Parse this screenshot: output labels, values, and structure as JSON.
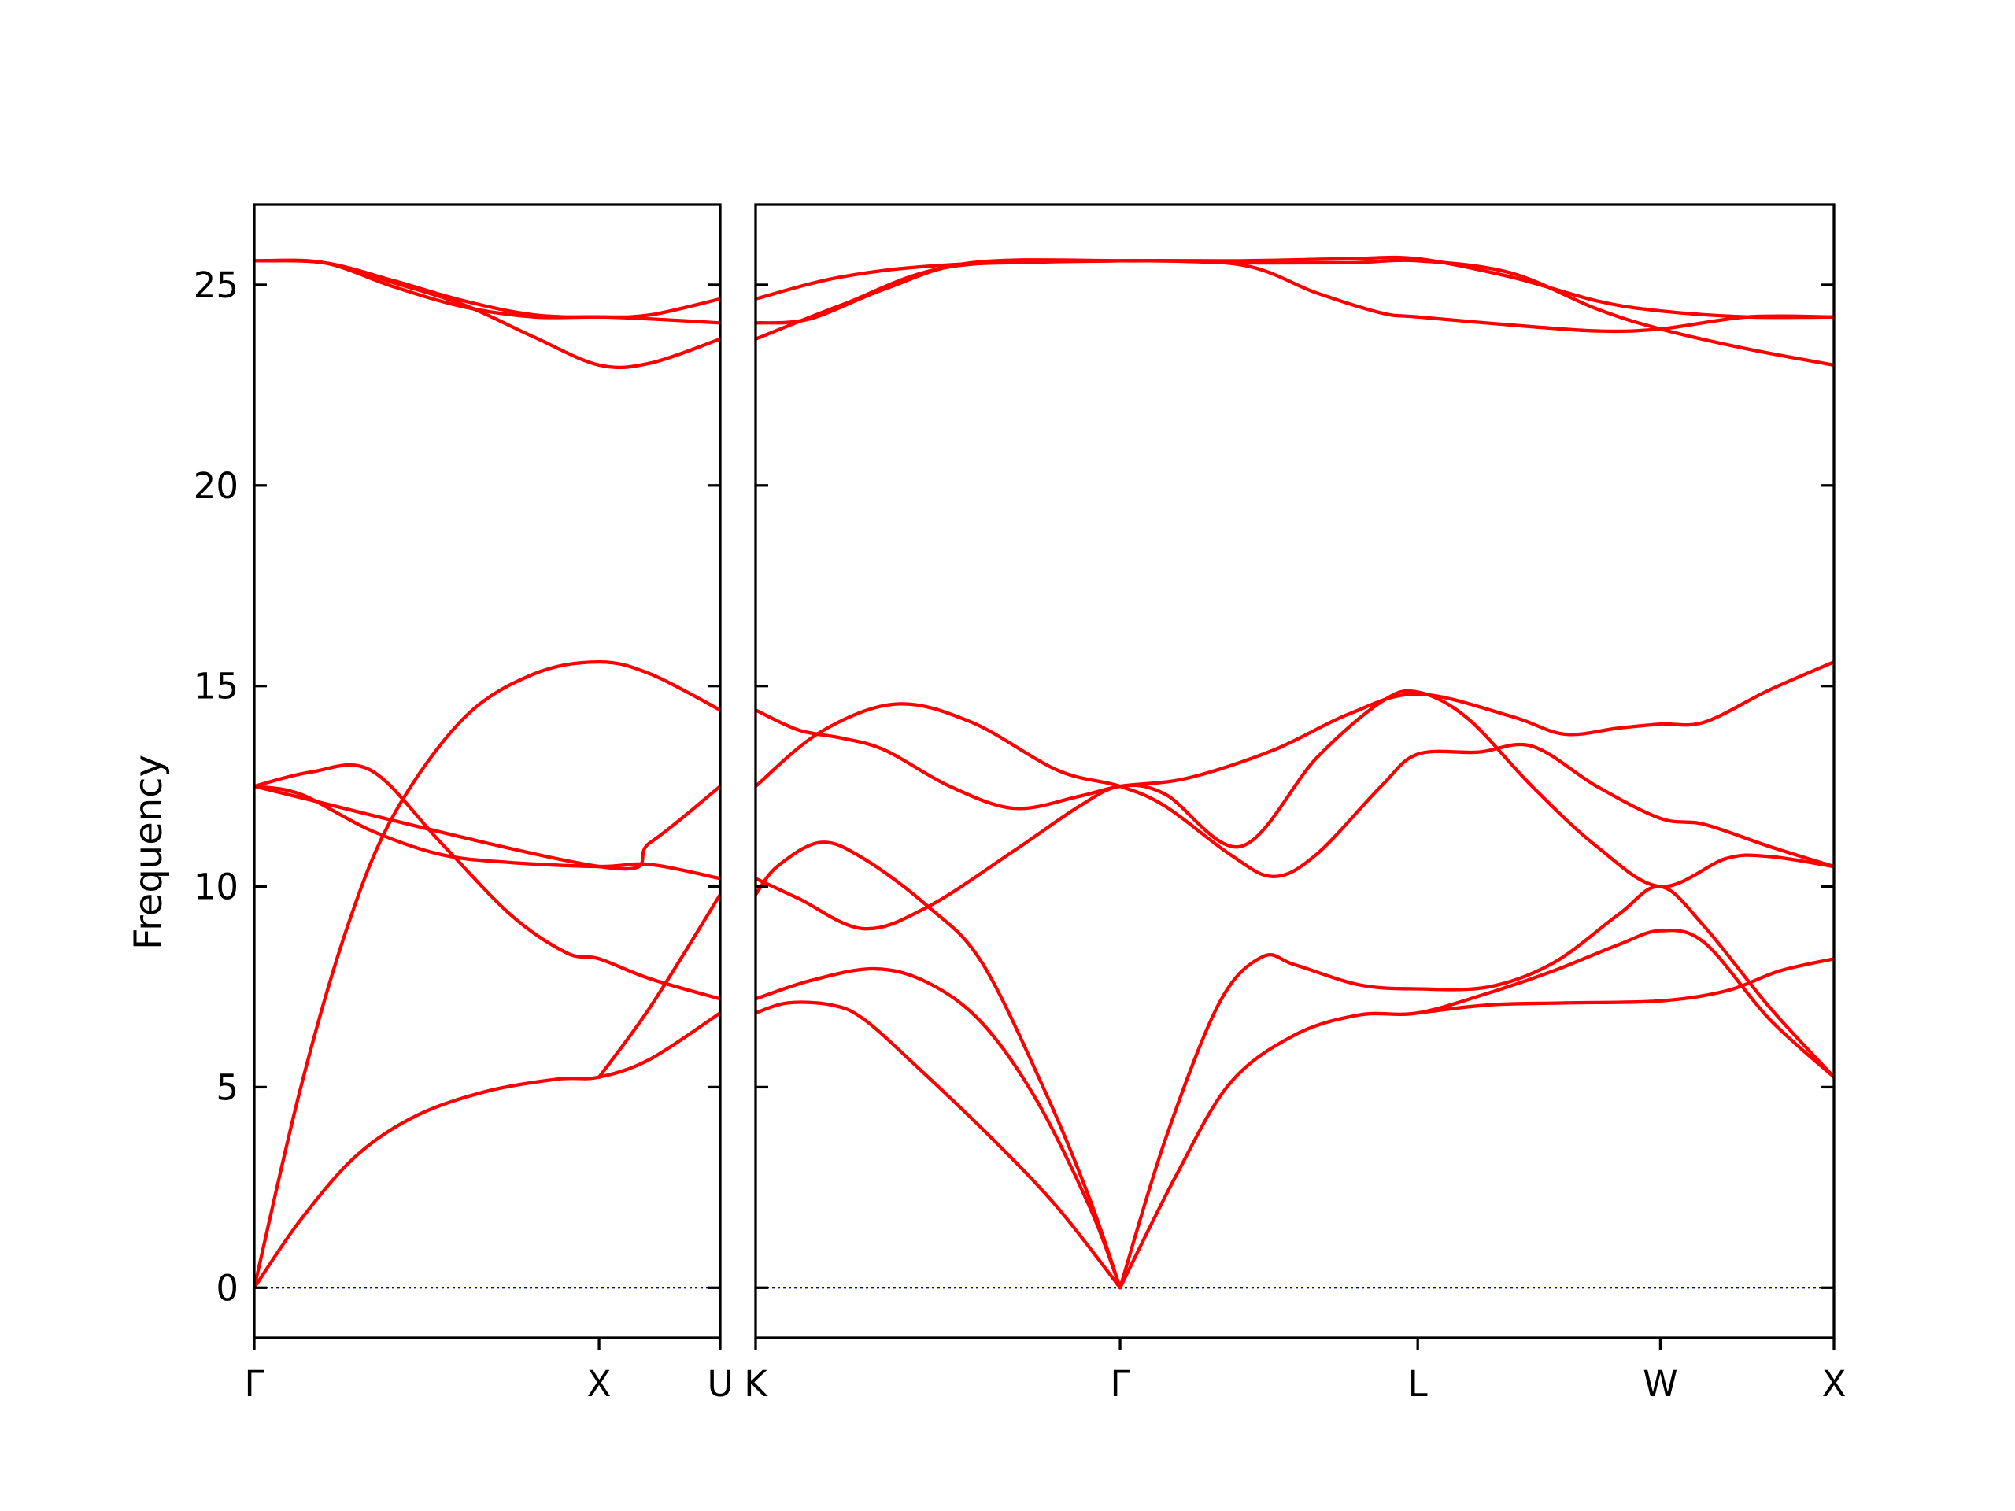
{
  "chart_data": {
    "type": "line",
    "ylabel": "Frequency",
    "ylim": [
      -1.25,
      27
    ],
    "yticks": [
      0,
      5,
      10,
      15,
      20,
      25
    ],
    "grid": false,
    "colors": {
      "bands": "#ff0000",
      "zero_line": "#0000cc",
      "axes": "#000000"
    },
    "panels": [
      {
        "xticks": [
          {
            "x": 0,
            "label": "Γ"
          },
          {
            "x": 0.74,
            "label": "X"
          },
          {
            "x": 1.0,
            "label": "U"
          }
        ],
        "xlim": [
          0,
          1.0
        ],
        "series": [
          {
            "points": [
              [
                0,
                25.6
              ],
              [
                0.15,
                25.55
              ],
              [
                0.3,
                24.95
              ],
              [
                0.45,
                24.45
              ],
              [
                0.6,
                24.2
              ],
              [
                0.74,
                24.2
              ],
              [
                0.85,
                24.15
              ],
              [
                1.0,
                24.05
              ]
            ]
          },
          {
            "points": [
              [
                0,
                25.6
              ],
              [
                0.15,
                25.55
              ],
              [
                0.3,
                25.05
              ],
              [
                0.45,
                24.5
              ],
              [
                0.6,
                23.7
              ],
              [
                0.74,
                23.0
              ],
              [
                0.85,
                23.05
              ],
              [
                1.0,
                23.65
              ]
            ]
          },
          {
            "points": [
              [
                0,
                25.6
              ],
              [
                0.15,
                25.55
              ],
              [
                0.3,
                25.1
              ],
              [
                0.45,
                24.6
              ],
              [
                0.6,
                24.25
              ],
              [
                0.74,
                24.2
              ],
              [
                0.85,
                24.25
              ],
              [
                1.0,
                24.65
              ]
            ]
          },
          {
            "points": [
              [
                0,
                0
              ],
              [
                0.1,
                5.0
              ],
              [
                0.2,
                9.0
              ],
              [
                0.3,
                11.8
              ],
              [
                0.45,
                14.2
              ],
              [
                0.6,
                15.3
              ],
              [
                0.74,
                15.6
              ],
              [
                0.85,
                15.3
              ],
              [
                1.0,
                14.4
              ]
            ]
          },
          {
            "points": [
              [
                0,
                12.5
              ],
              [
                0.12,
                12.85
              ],
              [
                0.25,
                12.9
              ],
              [
                0.4,
                11.1
              ],
              [
                0.55,
                9.3
              ],
              [
                0.67,
                8.35
              ],
              [
                0.74,
                8.2
              ],
              [
                0.85,
                7.7
              ],
              [
                1.0,
                7.2
              ]
            ]
          },
          {
            "points": [
              [
                0,
                12.5
              ],
              [
                0.1,
                12.3
              ],
              [
                0.25,
                11.4
              ],
              [
                0.4,
                10.8
              ],
              [
                0.55,
                10.6
              ],
              [
                0.74,
                10.5
              ],
              [
                0.85,
                10.55
              ],
              [
                1.0,
                10.2
              ]
            ]
          },
          {
            "points": [
              [
                0,
                0
              ],
              [
                0.1,
                1.7
              ],
              [
                0.22,
                3.3
              ],
              [
                0.35,
                4.3
              ],
              [
                0.5,
                4.9
              ],
              [
                0.65,
                5.2
              ],
              [
                0.74,
                5.25
              ],
              [
                0.85,
                5.7
              ],
              [
                1.0,
                6.85
              ]
            ]
          },
          {
            "points": [
              [
                0,
                12.5
              ],
              [
                0.74,
                10.5
              ],
              [
                0.85,
                11.1
              ],
              [
                1.0,
                12.5
              ]
            ]
          },
          {
            "points": [
              [
                0.74,
                5.25
              ],
              [
                0.85,
                7.0
              ],
              [
                1.0,
                9.8
              ]
            ]
          }
        ]
      },
      {
        "xticks": [
          {
            "x": 0,
            "label": "K"
          },
          {
            "x": 0.338,
            "label": "Γ"
          },
          {
            "x": 0.614,
            "label": "L"
          },
          {
            "x": 0.839,
            "label": "W"
          },
          {
            "x": 1.0,
            "label": "X"
          }
        ],
        "xlim": [
          0,
          1.0
        ],
        "series": [
          {
            "points": [
              [
                0,
                24.65
              ],
              [
                0.08,
                25.2
              ],
              [
                0.18,
                25.5
              ],
              [
                0.338,
                25.6
              ],
              [
                0.45,
                25.6
              ],
              [
                0.55,
                25.65
              ],
              [
                0.614,
                25.65
              ],
              [
                0.7,
                25.2
              ],
              [
                0.78,
                24.6
              ],
              [
                0.839,
                24.35
              ],
              [
                0.92,
                24.2
              ],
              [
                1.0,
                24.2
              ]
            ]
          },
          {
            "points": [
              [
                0,
                24.05
              ],
              [
                0.05,
                24.15
              ],
              [
                0.12,
                24.9
              ],
              [
                0.2,
                25.55
              ],
              [
                0.338,
                25.6
              ],
              [
                0.45,
                25.5
              ],
              [
                0.52,
                24.8
              ],
              [
                0.58,
                24.3
              ],
              [
                0.614,
                24.2
              ],
              [
                0.7,
                24.0
              ],
              [
                0.78,
                23.85
              ],
              [
                0.839,
                23.9
              ],
              [
                0.92,
                24.2
              ],
              [
                1.0,
                24.2
              ]
            ]
          },
          {
            "points": [
              [
                0,
                23.65
              ],
              [
                0.08,
                24.5
              ],
              [
                0.18,
                25.45
              ],
              [
                0.338,
                25.6
              ],
              [
                0.45,
                25.55
              ],
              [
                0.55,
                25.55
              ],
              [
                0.614,
                25.6
              ],
              [
                0.7,
                25.3
              ],
              [
                0.78,
                24.4
              ],
              [
                0.839,
                23.9
              ],
              [
                0.92,
                23.4
              ],
              [
                1.0,
                23.0
              ]
            ]
          },
          {
            "points": [
              [
                0,
                14.4
              ],
              [
                0.04,
                13.9
              ],
              [
                0.08,
                13.7
              ],
              [
                0.12,
                13.4
              ],
              [
                0.18,
                12.5
              ],
              [
                0.24,
                11.95
              ],
              [
                0.3,
                12.25
              ],
              [
                0.338,
                12.5
              ],
              [
                0.4,
                12.7
              ],
              [
                0.48,
                13.4
              ],
              [
                0.55,
                14.3
              ],
              [
                0.614,
                14.8
              ],
              [
                0.7,
                14.25
              ],
              [
                0.75,
                13.8
              ],
              [
                0.8,
                13.95
              ],
              [
                0.839,
                14.05
              ],
              [
                0.88,
                14.1
              ],
              [
                0.94,
                14.9
              ],
              [
                1.0,
                15.6
              ]
            ]
          },
          {
            "points": [
              [
                0,
                12.5
              ],
              [
                0.06,
                13.85
              ],
              [
                0.13,
                14.55
              ],
              [
                0.2,
                14.1
              ],
              [
                0.28,
                12.9
              ],
              [
                0.338,
                12.5
              ],
              [
                0.38,
                12.0
              ],
              [
                0.44,
                10.8
              ],
              [
                0.48,
                10.25
              ],
              [
                0.52,
                10.8
              ],
              [
                0.58,
                12.5
              ],
              [
                0.614,
                13.3
              ],
              [
                0.67,
                13.35
              ],
              [
                0.72,
                13.5
              ],
              [
                0.78,
                12.5
              ],
              [
                0.839,
                11.7
              ],
              [
                0.88,
                11.55
              ],
              [
                0.94,
                11.0
              ],
              [
                1.0,
                10.5
              ]
            ]
          },
          {
            "points": [
              [
                0,
                10.2
              ],
              [
                0.04,
                9.7
              ],
              [
                0.1,
                8.95
              ],
              [
                0.16,
                9.5
              ],
              [
                0.24,
                10.9
              ],
              [
                0.3,
                12.0
              ],
              [
                0.338,
                12.5
              ],
              [
                0.38,
                12.3
              ],
              [
                0.45,
                11.0
              ],
              [
                0.52,
                13.2
              ],
              [
                0.58,
                14.6
              ],
              [
                0.614,
                14.85
              ],
              [
                0.66,
                14.2
              ],
              [
                0.72,
                12.5
              ],
              [
                0.78,
                11.0
              ],
              [
                0.839,
                10.0
              ],
              [
                0.9,
                10.7
              ],
              [
                0.94,
                10.75
              ],
              [
                1.0,
                10.5
              ]
            ]
          },
          {
            "points": [
              [
                0,
                9.8
              ],
              [
                0.02,
                10.5
              ],
              [
                0.06,
                11.1
              ],
              [
                0.1,
                10.7
              ],
              [
                0.16,
                9.5
              ],
              [
                0.21,
                8.1
              ],
              [
                0.27,
                4.8
              ],
              [
                0.31,
                2.2
              ],
              [
                0.338,
                0
              ]
            ]
          },
          {
            "points": [
              [
                0,
                7.2
              ],
              [
                0.05,
                7.65
              ],
              [
                0.11,
                7.95
              ],
              [
                0.16,
                7.6
              ],
              [
                0.21,
                6.6
              ],
              [
                0.26,
                4.7
              ],
              [
                0.31,
                2.0
              ],
              [
                0.338,
                0
              ]
            ]
          },
          {
            "points": [
              [
                0,
                6.85
              ],
              [
                0.03,
                7.1
              ],
              [
                0.07,
                7.05
              ],
              [
                0.1,
                6.7
              ],
              [
                0.15,
                5.5
              ],
              [
                0.22,
                3.7
              ],
              [
                0.28,
                2.0
              ],
              [
                0.338,
                0
              ]
            ]
          },
          {
            "points": [
              [
                0.338,
                0
              ],
              [
                0.38,
                3.7
              ],
              [
                0.43,
                7.1
              ],
              [
                0.47,
                8.25
              ],
              [
                0.5,
                8.05
              ],
              [
                0.56,
                7.55
              ],
              [
                0.614,
                7.45
              ],
              [
                0.68,
                7.5
              ],
              [
                0.74,
                8.1
              ],
              [
                0.8,
                9.3
              ],
              [
                0.839,
                10.0
              ],
              [
                0.88,
                9.0
              ],
              [
                0.94,
                7.0
              ],
              [
                1.0,
                5.25
              ]
            ]
          },
          {
            "points": [
              [
                0.338,
                0
              ],
              [
                0.39,
                2.8
              ],
              [
                0.44,
                5.1
              ],
              [
                0.5,
                6.3
              ],
              [
                0.56,
                6.8
              ],
              [
                0.614,
                6.85
              ],
              [
                0.68,
                7.35
              ],
              [
                0.74,
                7.9
              ],
              [
                0.8,
                8.55
              ],
              [
                0.839,
                8.9
              ],
              [
                0.88,
                8.6
              ],
              [
                0.94,
                6.7
              ],
              [
                1.0,
                5.25
              ]
            ]
          },
          {
            "points": [
              [
                0.614,
                6.85
              ],
              [
                0.68,
                7.05
              ],
              [
                0.75,
                7.1
              ],
              [
                0.839,
                7.15
              ],
              [
                0.9,
                7.4
              ],
              [
                0.95,
                7.9
              ],
              [
                1.0,
                8.2
              ]
            ]
          }
        ]
      }
    ]
  }
}
